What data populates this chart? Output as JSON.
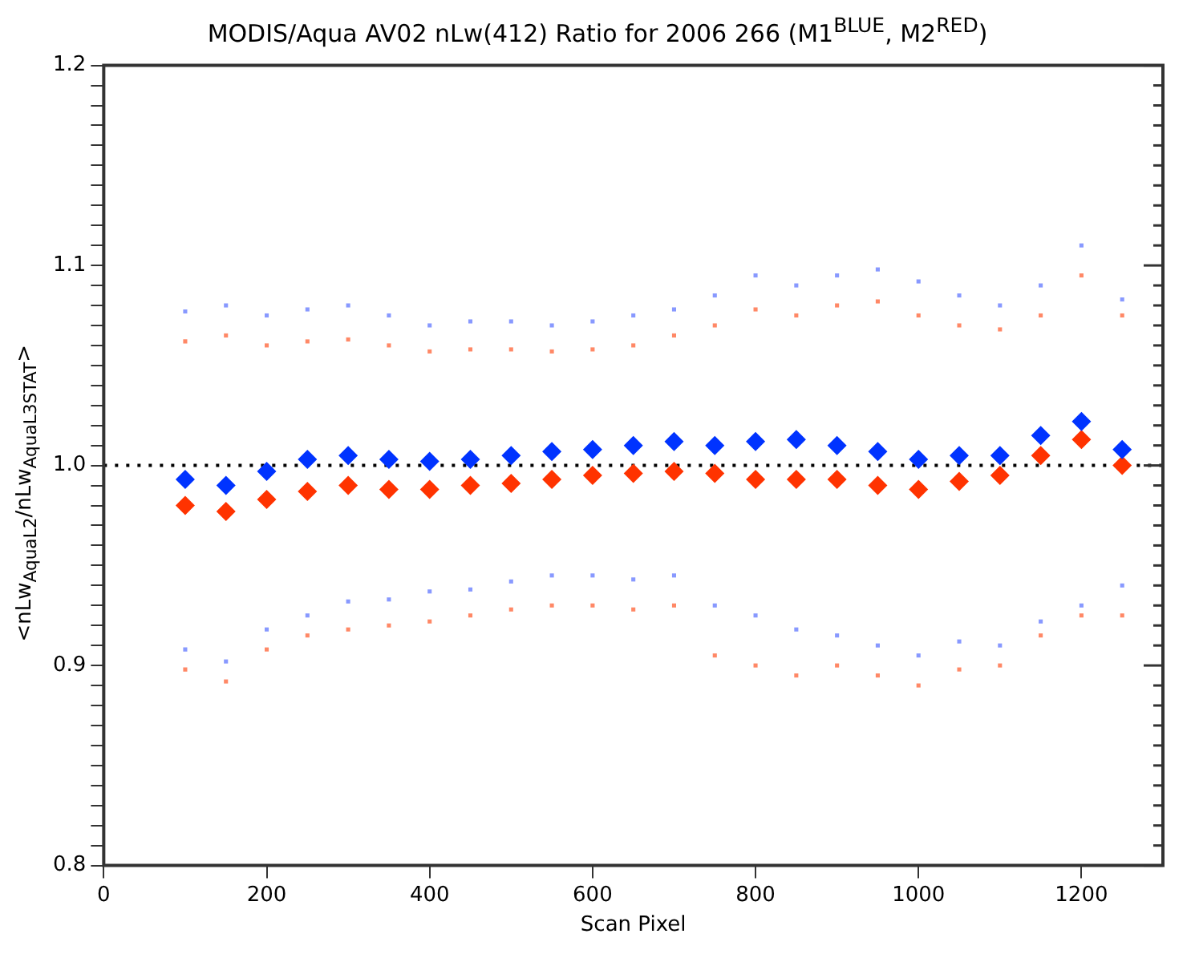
{
  "chart_data": {
    "type": "scatter",
    "title": "MODIS/Aqua AV02 nLw(412) Ratio for 2006 266 (M1$^{BLUE}$, M2$^{RED}$)",
    "xlabel": "Scan Pixel",
    "ylabel": "<nLw$_{AquaL2}$/nLw$_{AquaL3STAT}$>",
    "x": [
      100,
      150,
      200,
      250,
      300,
      350,
      400,
      450,
      500,
      550,
      600,
      650,
      700,
      750,
      800,
      850,
      900,
      950,
      1000,
      1050,
      1100,
      1150,
      1200,
      1250
    ],
    "series": [
      {
        "color": "#8899ff",
        "marker": "square",
        "values": [
          1.077,
          1.08,
          1.075,
          1.078,
          1.08,
          1.075,
          1.07,
          1.072,
          1.072,
          1.07,
          1.072,
          1.075,
          1.078,
          1.085,
          1.095,
          1.09,
          1.095,
          1.098,
          1.092,
          1.085,
          1.08,
          1.09,
          1.11,
          1.083
        ]
      },
      {
        "color": "#ff8866",
        "marker": "square",
        "values": [
          1.062,
          1.065,
          1.06,
          1.062,
          1.063,
          1.06,
          1.057,
          1.058,
          1.058,
          1.057,
          1.058,
          1.06,
          1.065,
          1.07,
          1.078,
          1.075,
          1.08,
          1.082,
          1.075,
          1.07,
          1.068,
          1.075,
          1.095,
          1.075
        ]
      },
      {
        "color": "#0033ff",
        "marker": "diamond",
        "values": [
          0.993,
          0.99,
          0.997,
          1.003,
          1.005,
          1.003,
          1.002,
          1.003,
          1.005,
          1.007,
          1.008,
          1.01,
          1.012,
          1.01,
          1.012,
          1.013,
          1.01,
          1.007,
          1.003,
          1.005,
          1.005,
          1.015,
          1.022,
          1.008
        ]
      },
      {
        "color": "#ff3300",
        "marker": "diamond",
        "values": [
          0.98,
          0.977,
          0.983,
          0.987,
          0.99,
          0.988,
          0.988,
          0.99,
          0.991,
          0.993,
          0.995,
          0.996,
          0.997,
          0.996,
          0.993,
          0.993,
          0.993,
          0.99,
          0.988,
          0.992,
          0.995,
          1.005,
          1.013,
          1.0
        ]
      },
      {
        "color": "#8899ff",
        "marker": "square",
        "values": [
          0.908,
          0.902,
          0.918,
          0.925,
          0.932,
          0.933,
          0.937,
          0.938,
          0.942,
          0.945,
          0.945,
          0.943,
          0.945,
          0.93,
          0.925,
          0.918,
          0.915,
          0.91,
          0.905,
          0.912,
          0.91,
          0.922,
          0.93,
          0.94
        ]
      },
      {
        "color": "#ff8866",
        "marker": "square",
        "values": [
          0.898,
          0.892,
          0.908,
          0.915,
          0.918,
          0.92,
          0.922,
          0.925,
          0.928,
          0.93,
          0.93,
          0.928,
          0.93,
          0.905,
          0.9,
          0.895,
          0.9,
          0.895,
          0.89,
          0.898,
          0.9,
          0.915,
          0.925,
          0.925
        ]
      }
    ],
    "xlim": [
      0,
      1300
    ],
    "xticks": [
      0,
      200,
      400,
      600,
      800,
      1000,
      1200
    ],
    "ylim": [
      0.8,
      1.2
    ],
    "yticks": [
      0.8,
      {
        "value": 0.81,
        "label": null
      },
      {
        "value": 0.82,
        "label": null
      },
      {
        "value": 0.83,
        "label": null
      },
      {
        "value": 0.84,
        "label": null
      },
      {
        "value": 0.85,
        "label": null
      },
      {
        "value": 0.86,
        "label": null
      },
      {
        "value": 0.87,
        "label": null
      },
      {
        "value": 0.88,
        "label": null
      },
      {
        "value": 0.89,
        "label": null
      },
      0.9,
      {
        "value": 0.91,
        "label": null
      },
      {
        "value": 0.92,
        "label": null
      },
      {
        "value": 0.93,
        "label": null
      },
      {
        "value": 0.94,
        "label": null
      },
      {
        "value": 0.95,
        "label": null
      },
      {
        "value": 0.96,
        "label": null
      },
      {
        "value": 0.97,
        "label": null
      },
      {
        "value": 0.98,
        "label": null
      },
      {
        "value": 0.99,
        "label": null
      },
      {
        "value": 1,
        "label": "1.0"
      },
      {
        "value": 1.01,
        "label": null
      },
      {
        "value": 1.02,
        "label": null
      },
      {
        "value": 1.03,
        "label": null
      },
      {
        "value": 1.04,
        "label": null
      },
      {
        "value": 1.05,
        "label": null
      },
      {
        "value": 1.06,
        "label": null
      },
      {
        "value": 1.07,
        "label": null
      },
      {
        "value": 1.08,
        "label": null
      },
      {
        "value": 1.09,
        "label": null
      },
      1.1,
      {
        "value": 1.11,
        "label": null
      },
      {
        "value": 1.12,
        "label": null
      },
      {
        "value": 1.13,
        "label": null
      },
      {
        "value": 1.14,
        "label": null
      },
      {
        "value": 1.15,
        "label": null
      },
      {
        "value": 1.16,
        "label": null
      },
      {
        "value": 1.17,
        "label": null
      },
      {
        "value": 1.18,
        "label": null
      },
      {
        "value": 1.19,
        "label": null
      },
      1.2
    ],
    "ref_lines": [
      {
        "axis": "y",
        "value": 1,
        "color": "#000000",
        "line_style": "dotted"
      }
    ],
    "grid": false,
    "legend": false
  }
}
